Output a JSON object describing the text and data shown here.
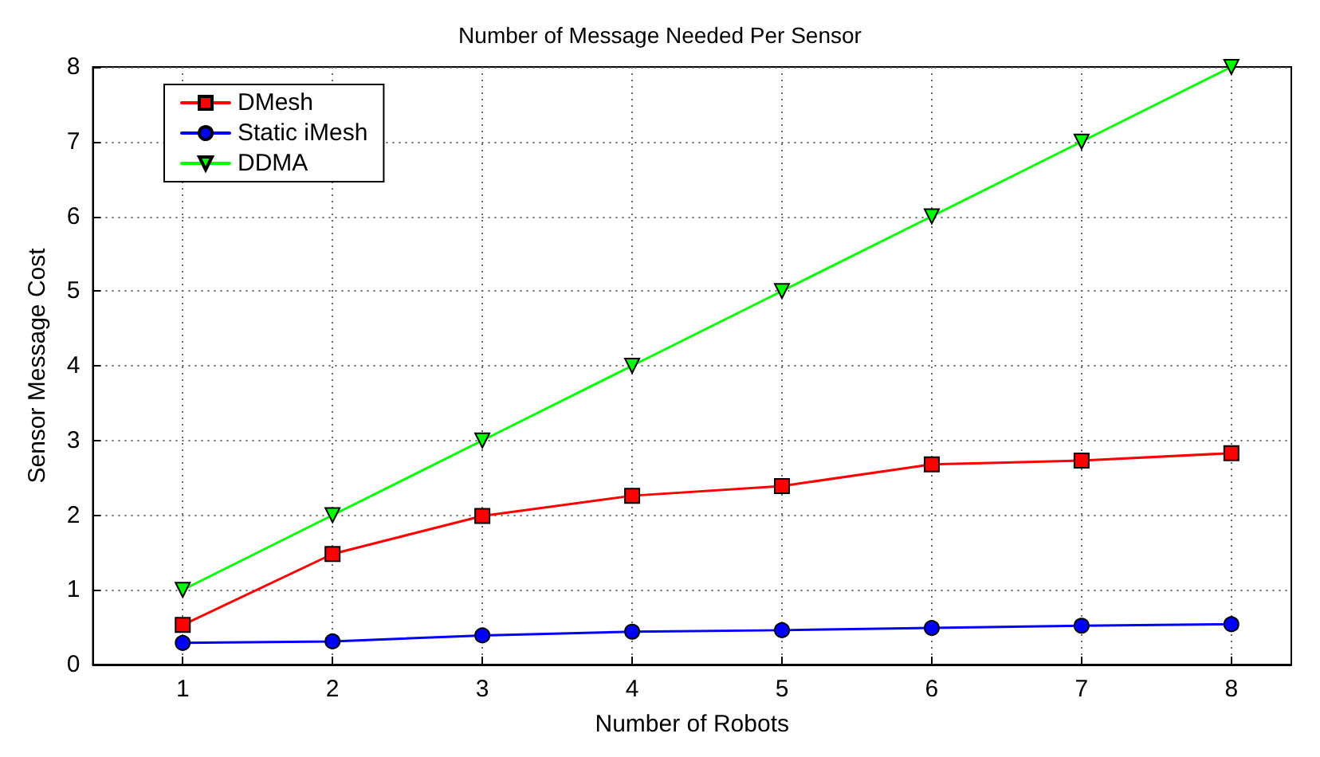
{
  "chart_data": {
    "type": "line",
    "title": "Number of Message Needed Per Sensor",
    "xlabel": "Number of Robots",
    "ylabel": "Sensor Message Cost",
    "x": [
      1,
      2,
      3,
      4,
      5,
      6,
      7,
      8
    ],
    "series": [
      {
        "name": "DMesh",
        "color": "#ff0000",
        "marker": "square",
        "values": [
          0.53,
          1.48,
          1.99,
          2.26,
          2.39,
          2.68,
          2.73,
          2.83
        ]
      },
      {
        "name": "Static iMesh",
        "color": "#0000ff",
        "marker": "circle",
        "values": [
          0.29,
          0.31,
          0.39,
          0.44,
          0.46,
          0.49,
          0.52,
          0.54
        ]
      },
      {
        "name": "DDMA",
        "color": "#00ff00",
        "marker": "triangle",
        "values": [
          1,
          2,
          3,
          4,
          5,
          6,
          7,
          8
        ]
      }
    ],
    "xlim": [
      0.4,
      8.4
    ],
    "xticks": [
      1,
      2,
      3,
      4,
      5,
      6,
      7,
      8
    ],
    "ylim": [
      0,
      8
    ],
    "yticks": [
      0,
      1,
      2,
      3,
      4,
      5,
      6,
      7,
      8
    ],
    "grid": true,
    "legend": "top left",
    "line_style": "solid"
  }
}
